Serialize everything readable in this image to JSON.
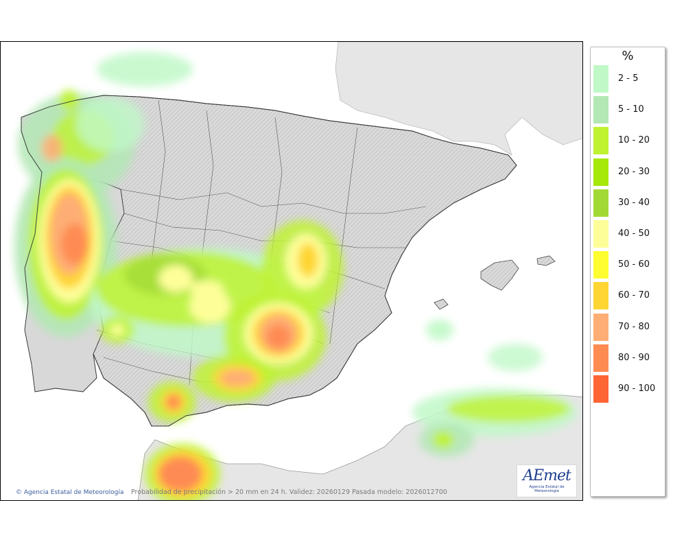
{
  "legend": {
    "title": "%",
    "items": [
      {
        "label": "2 - 5",
        "color": "#c1f8c8"
      },
      {
        "label": "5 - 10",
        "color": "#b3e8b4"
      },
      {
        "label": "10 - 20",
        "color": "#bff231"
      },
      {
        "label": "20 - 30",
        "color": "#a6e80a"
      },
      {
        "label": "30 - 40",
        "color": "#a3d935"
      },
      {
        "label": "40 - 50",
        "color": "#fefe99"
      },
      {
        "label": "50 - 60",
        "color": "#fdfd32"
      },
      {
        "label": "60 - 70",
        "color": "#fed533"
      },
      {
        "label": "70 - 80",
        "color": "#feae75"
      },
      {
        "label": "80 - 90",
        "color": "#fe8b52"
      },
      {
        "label": "90 - 100",
        "color": "#fe6535"
      }
    ]
  },
  "footer": {
    "credit": "Agencia Estatal de Meteorología",
    "caption": "Probabilidad de precipitación > 20 mm en 24 h. Validez: 20260129 Pasada modelo: 2026012700"
  },
  "logo": {
    "main": "AEmet",
    "sub": "Agencia Estatal de Meteorología"
  }
}
